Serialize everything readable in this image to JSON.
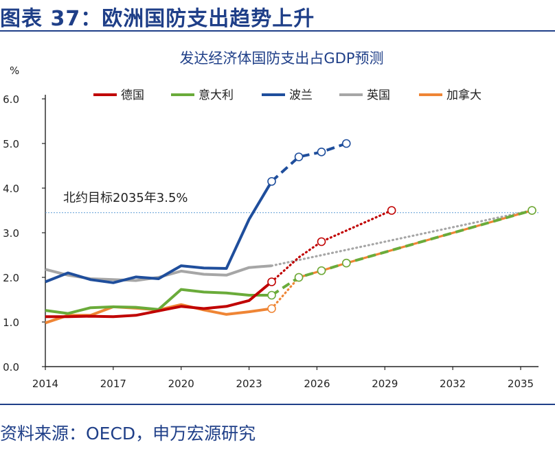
{
  "header": {
    "title": "图表 37：欧洲国防支出趋势上升"
  },
  "footer": {
    "source": "资料来源：OECD，申万宏源研究"
  },
  "chart_data": {
    "type": "line",
    "title": "发达经济体国防支出占GDP预测",
    "ylabel": "%",
    "xlabel": "",
    "xlim": [
      2014,
      2035.5
    ],
    "ylim": [
      0,
      6
    ],
    "xticks": [
      2014,
      2017,
      2020,
      2023,
      2026,
      2029,
      2032,
      2035
    ],
    "yticks": [
      "0.0",
      "1.0",
      "2.0",
      "3.0",
      "4.0",
      "5.0",
      "6.0"
    ],
    "reference_line": {
      "value": 3.45,
      "label": "北约目标2035年3.5%"
    },
    "series": [
      {
        "name": "德国",
        "color": "#c00000",
        "actual": [
          [
            2014,
            1.12
          ],
          [
            2015,
            1.12
          ],
          [
            2016,
            1.13
          ],
          [
            2017,
            1.12
          ],
          [
            2018,
            1.15
          ],
          [
            2019,
            1.25
          ],
          [
            2020,
            1.35
          ],
          [
            2021,
            1.3
          ],
          [
            2022,
            1.35
          ],
          [
            2023,
            1.48
          ],
          [
            2024,
            1.9
          ]
        ],
        "forecast": [
          [
            2024,
            1.9
          ],
          [
            2025.2,
            2.45
          ],
          [
            2026.2,
            2.8
          ],
          [
            2029.3,
            3.5
          ]
        ],
        "forecast_style": "dotted",
        "markers": [
          [
            2024,
            1.9
          ],
          [
            2026.2,
            2.8
          ],
          [
            2029.3,
            3.5
          ]
        ]
      },
      {
        "name": "意大利",
        "color": "#6aab3a",
        "actual": [
          [
            2014,
            1.26
          ],
          [
            2015,
            1.19
          ],
          [
            2016,
            1.32
          ],
          [
            2017,
            1.34
          ],
          [
            2018,
            1.33
          ],
          [
            2019,
            1.28
          ],
          [
            2020,
            1.73
          ],
          [
            2021,
            1.67
          ],
          [
            2022,
            1.65
          ],
          [
            2023,
            1.6
          ],
          [
            2024,
            1.6
          ]
        ],
        "forecast": [
          [
            2024,
            1.6
          ],
          [
            2025.2,
            2.0
          ],
          [
            2026.2,
            2.15
          ],
          [
            2027.3,
            2.32
          ],
          [
            2035.5,
            3.5
          ]
        ],
        "forecast_style": "dashed",
        "markers": [
          [
            2024,
            1.6
          ],
          [
            2025.2,
            2.0
          ],
          [
            2026.2,
            2.15
          ],
          [
            2027.3,
            2.32
          ],
          [
            2035.5,
            3.5
          ]
        ]
      },
      {
        "name": "波兰",
        "color": "#1f4e9c",
        "actual": [
          [
            2014,
            1.9
          ],
          [
            2015,
            2.1
          ],
          [
            2016,
            1.95
          ],
          [
            2017,
            1.88
          ],
          [
            2018,
            2.01
          ],
          [
            2019,
            1.97
          ],
          [
            2020,
            2.26
          ],
          [
            2021,
            2.21
          ],
          [
            2022,
            2.2
          ],
          [
            2023,
            3.3
          ],
          [
            2024,
            4.15
          ]
        ],
        "forecast": [
          [
            2024,
            4.15
          ],
          [
            2025.2,
            4.7
          ],
          [
            2026.2,
            4.81
          ],
          [
            2027.3,
            5.0
          ]
        ],
        "forecast_style": "dashed",
        "markers": [
          [
            2024,
            4.15
          ],
          [
            2025.2,
            4.7
          ],
          [
            2026.2,
            4.81
          ],
          [
            2027.3,
            5.0
          ]
        ]
      },
      {
        "name": "英国",
        "color": "#a6a6a6",
        "actual": [
          [
            2014,
            2.18
          ],
          [
            2015,
            2.05
          ],
          [
            2016,
            1.97
          ],
          [
            2017,
            1.95
          ],
          [
            2018,
            1.93
          ],
          [
            2019,
            2.0
          ],
          [
            2020,
            2.14
          ],
          [
            2021,
            2.07
          ],
          [
            2022,
            2.05
          ],
          [
            2023,
            2.22
          ],
          [
            2024,
            2.26
          ]
        ],
        "forecast": [
          [
            2024,
            2.26
          ],
          [
            2035.5,
            3.5
          ]
        ],
        "forecast_style": "dotted",
        "markers": []
      },
      {
        "name": "加拿大",
        "color": "#ef8535",
        "actual": [
          [
            2014,
            0.98
          ],
          [
            2015,
            1.15
          ],
          [
            2016,
            1.15
          ],
          [
            2017,
            1.34
          ],
          [
            2018,
            1.31
          ],
          [
            2019,
            1.27
          ],
          [
            2020,
            1.39
          ],
          [
            2021,
            1.27
          ],
          [
            2022,
            1.17
          ],
          [
            2023,
            1.23
          ],
          [
            2024,
            1.3
          ]
        ],
        "forecast": [
          [
            2024,
            1.3
          ],
          [
            2025.2,
            2.0
          ],
          [
            2026.2,
            2.15
          ],
          [
            2027.3,
            2.32
          ],
          [
            2035.5,
            3.5
          ]
        ],
        "forecast_style": "dotted-then-dashed",
        "markers": [
          [
            2024,
            1.3
          ],
          [
            2025.2,
            2.0
          ],
          [
            2026.2,
            2.15
          ],
          [
            2027.3,
            2.32
          ],
          [
            2035.5,
            3.5
          ]
        ]
      }
    ]
  }
}
